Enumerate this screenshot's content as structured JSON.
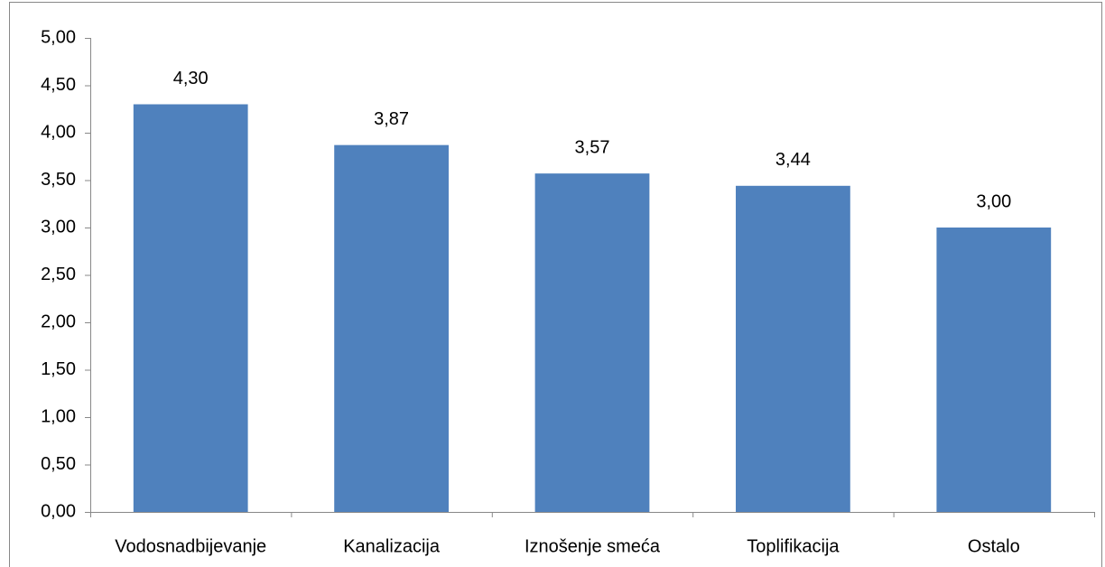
{
  "chart_data": {
    "type": "bar",
    "categories": [
      "Vodosnadbijevanje",
      "Kanalizacija",
      "Iznošenje smeća",
      "Toplifikacija",
      "Ostalo"
    ],
    "values": [
      4.3,
      3.87,
      3.57,
      3.44,
      3.0
    ],
    "value_labels": [
      "4,30",
      "3,87",
      "3,57",
      "3,44",
      "3,00"
    ],
    "color": "#4f81bd",
    "ylim": [
      0,
      5
    ],
    "yticks": [
      {
        "value": 0,
        "label": "0,00"
      },
      {
        "value": 0.5,
        "label": "0,50"
      },
      {
        "value": 1,
        "label": "1,00"
      },
      {
        "value": 1.5,
        "label": "1,50"
      },
      {
        "value": 2,
        "label": "2,00"
      },
      {
        "value": 2.5,
        "label": "2,50"
      },
      {
        "value": 3,
        "label": "3,00"
      },
      {
        "value": 3.5,
        "label": "3,50"
      },
      {
        "value": 4,
        "label": "4,00"
      },
      {
        "value": 4.5,
        "label": "4,50"
      },
      {
        "value": 5,
        "label": "5,00"
      }
    ],
    "grid": false
  }
}
